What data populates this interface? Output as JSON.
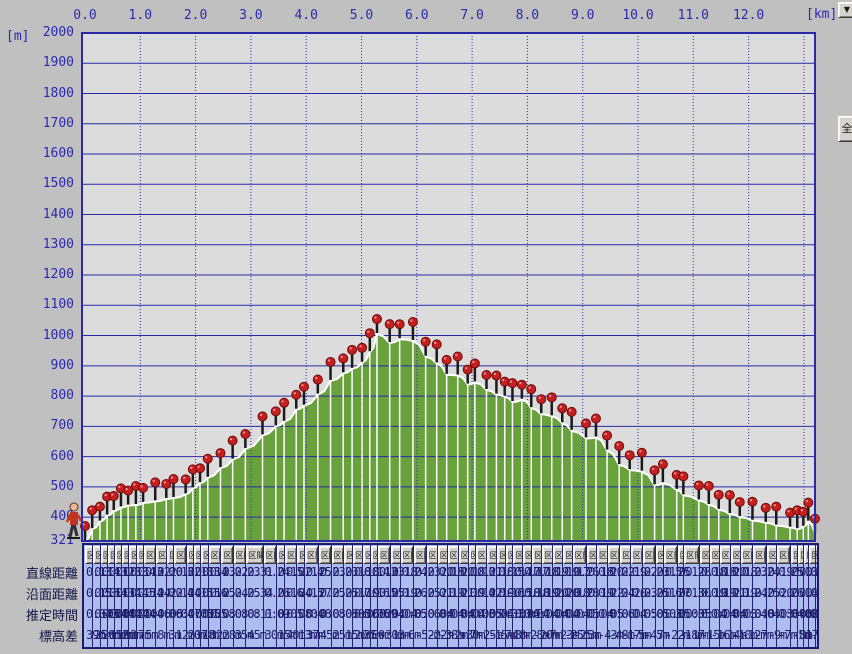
{
  "axes": {
    "unit_y": "[m]",
    "unit_x": "[km]",
    "yticks": [
      2000,
      1900,
      1800,
      1700,
      1600,
      1500,
      1400,
      1300,
      1200,
      1100,
      1000,
      900,
      800,
      700,
      600,
      500,
      400
    ],
    "ymin_label": "321",
    "xticks": [
      "0.0",
      "1.0",
      "2.0",
      "3.0",
      "4.0",
      "5.0",
      "6.0",
      "7.0",
      "8.0",
      "9.0",
      "10.0",
      "11.0",
      "12.0"
    ]
  },
  "buttons": {
    "collapse_icon": "▼",
    "fit_label": "全",
    "section_label": "区間"
  },
  "chart_data": {
    "type": "area",
    "title": "",
    "xlabel": "[km]",
    "ylabel": "[m]",
    "xlim": [
      0,
      13.2
    ],
    "ylim": [
      321,
      2000
    ],
    "grid": "on",
    "x_km": [
      0.0,
      0.13,
      0.27,
      0.4,
      0.52,
      0.65,
      0.78,
      0.92,
      1.05,
      1.27,
      1.47,
      1.6,
      1.82,
      1.95,
      2.08,
      2.22,
      2.45,
      2.67,
      2.9,
      3.21,
      3.45,
      3.6,
      3.82,
      3.96,
      4.21,
      4.44,
      4.67,
      4.83,
      5.01,
      5.15,
      5.28,
      5.51,
      5.69,
      5.93,
      6.16,
      6.36,
      6.54,
      6.74,
      6.92,
      7.05,
      7.26,
      7.44,
      7.59,
      7.73,
      7.9,
      8.07,
      8.25,
      8.44,
      8.63,
      8.8,
      9.06,
      9.24,
      9.44,
      9.66,
      9.85,
      10.07,
      10.3,
      10.45,
      10.7,
      10.82,
      11.1,
      11.28,
      11.46,
      11.66,
      11.84,
      12.07,
      12.31,
      12.5,
      12.75,
      12.88,
      12.99,
      13.08,
      13.2
    ],
    "elev_m": [
      321,
      360,
      385,
      405,
      420,
      432,
      438,
      440,
      447,
      452,
      460,
      463,
      475,
      495,
      512,
      530,
      562,
      590,
      625,
      670,
      700,
      715,
      755,
      768,
      805,
      850,
      875,
      890,
      910,
      945,
      1005,
      975,
      988,
      982,
      930,
      908,
      870,
      868,
      838,
      845,
      820,
      805,
      798,
      780,
      788,
      760,
      740,
      733,
      710,
      685,
      660,
      663,
      620,
      572,
      555,
      550,
      505,
      512,
      490,
      472,
      455,
      440,
      424,
      410,
      400,
      388,
      381,
      372,
      365,
      360,
      368,
      385,
      345
    ],
    "colors": {
      "plot_bg": "#dcdcdc",
      "window_bg": "#c0c0c0",
      "grid": "#2a2aa8",
      "area_fill": "#69a23c",
      "area_outline": "#ffffff",
      "pin_head": "#c42020",
      "pin_stem": "#1a1a1a",
      "table_bg": "#aebdf0"
    }
  },
  "table": {
    "rows": [
      {
        "label": "直線距離",
        "values": [
          "0.13",
          "0.14",
          "0.13",
          "0.12",
          "0.13",
          "0.13",
          "0.14",
          "0.13",
          "0.22",
          "0.20",
          "0.13",
          "0.22",
          "0.13",
          "0.13",
          "0.14",
          "0.23",
          "0.22",
          "0.23",
          "0.31",
          "0.24",
          "0.15",
          "0.22",
          "0.14",
          "0.25",
          "0.23",
          "0.23",
          "0.16",
          "0.18",
          "0.14",
          "0.13",
          "0.23",
          "0.18",
          "0.24",
          "0.23",
          "0.20",
          "0.18",
          "0.20",
          "0.18",
          "0.13",
          "0.21",
          "0.18",
          "0.15",
          "0.14",
          "0.17",
          "0.17",
          "0.18",
          "0.19",
          "0.19",
          "0.17",
          "0.26",
          "0.18",
          "0.20",
          "0.22",
          "0.19",
          "0.22",
          "0.23",
          "0.15",
          "0.25",
          "0.12",
          "0.28",
          "0.18",
          "0.18",
          "0.20",
          "0.18",
          "0.23",
          "0.24",
          "0.19",
          "0.25",
          "0.13",
          "0.11",
          "0.09",
          "0.12"
        ]
      },
      {
        "label": "沿面距離",
        "values": [
          "0.15",
          "0.16",
          "0.14",
          "0.13",
          "0.14",
          "0.14",
          "0.15",
          "0.14",
          "0.24",
          "0.22",
          "0.14",
          "0.24",
          "0.15",
          "0.15",
          "0.16",
          "0.25",
          "0.24",
          "0.25",
          "0.34",
          "0.26",
          "0.16",
          "0.24",
          "0.15",
          "0.27",
          "0.25",
          "0.25",
          "0.17",
          "0.19",
          "0.16",
          "0.15",
          "0.25",
          "0.19",
          "0.26",
          "0.25",
          "0.21",
          "0.19",
          "0.21",
          "0.19",
          "0.14",
          "0.22",
          "0.19",
          "0.16",
          "0.15",
          "0.18",
          "0.18",
          "0.19",
          "0.20",
          "0.20",
          "0.18",
          "0.28",
          "0.19",
          "0.22",
          "0.24",
          "0.20",
          "0.23",
          "0.25",
          "0.16",
          "0.27",
          "0.13",
          "0.30",
          "0.19",
          "0.19",
          "0.21",
          "0.19",
          "0.24",
          "0.25",
          "0.20",
          "0.26",
          "0.14",
          "0.12",
          "0.10",
          "0.13"
        ]
      },
      {
        "label": "推定時間",
        "values": [
          "0:04",
          "0:05",
          "0:04",
          "0:04",
          "0:04",
          "0:04",
          "0:04",
          "0:04",
          "0:06",
          "0:06",
          "0:04",
          "0:07",
          "0:05",
          "0:05",
          "0:05",
          "0:08",
          "0:08",
          "0:08",
          "0:11",
          "0:09",
          "0:05",
          "0:08",
          "0:04",
          "0:08",
          "0:08",
          "0:08",
          "0:05",
          "0:06",
          "0:06",
          "0:09",
          "0:04",
          "0:04",
          "0:05",
          "0:06",
          "0:04",
          "0:04",
          "0:04",
          "0:04",
          "0:03",
          "0:05",
          "0:04",
          "0:03",
          "0:03",
          "0:04",
          "0:04",
          "0:04",
          "0:04",
          "0:04",
          "0:04",
          "0:05",
          "0:04",
          "0:05",
          "0:06",
          "0:04",
          "0:05",
          "0:05",
          "0:03",
          "0:05",
          "0:03",
          "0:05",
          "0:04",
          "0:04",
          "0:04",
          "0:03",
          "0:04",
          "0:04",
          "0:03",
          "0:04",
          "0:02",
          "0:02",
          "0:02",
          "0:03"
        ]
      },
      {
        "label": "標高差",
        "values": [
          "39m",
          "25m",
          "20m",
          "15m",
          "12m",
          "6m",
          "2m",
          "7m",
          "5m",
          "8m",
          "3m",
          "12m",
          "20m",
          "17m",
          "18m",
          "32m",
          "28m",
          "35m",
          "45m",
          "30m",
          "15m",
          "40m",
          "13m",
          "37m",
          "45m",
          "25m",
          "15m",
          "20m",
          "35m",
          "60m",
          "-30m",
          "13m",
          "-6m",
          "-52m",
          "-22m",
          "-38m",
          "-2m",
          "-30m",
          "7m",
          "-25m",
          "-15m",
          "-7m",
          "-18m",
          "8m",
          "-28m",
          "-20m",
          "-7m",
          "-23m",
          "-25m",
          "-25m",
          "3m",
          "-43m",
          "-48m",
          "-17m",
          "-5m",
          "-45m",
          "7m",
          "-22m",
          "-18m",
          "-17m",
          "-15m",
          "-16m",
          "-14m",
          "-10m",
          "-12m",
          "-7m",
          "-9m",
          "-7m",
          "-5m",
          "8m",
          "17m",
          "-40m"
        ]
      }
    ]
  }
}
